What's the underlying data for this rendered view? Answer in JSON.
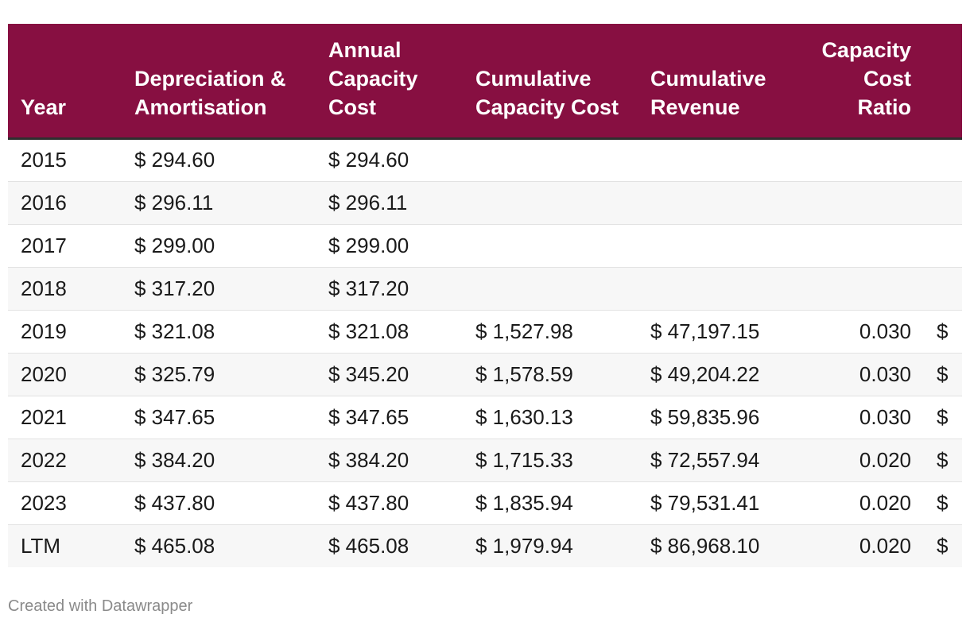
{
  "chart_data": {
    "type": "table",
    "columns": [
      {
        "key": "year",
        "label": "Year",
        "align": "left"
      },
      {
        "key": "dep",
        "label": "Depreciation & Amortisation",
        "align": "left"
      },
      {
        "key": "annual",
        "label": "Annual Capacity Cost",
        "align": "left"
      },
      {
        "key": "cumcost",
        "label": "Cumulative Capacity Cost",
        "align": "left"
      },
      {
        "key": "cumrev",
        "label": "Cumulative Revenue",
        "align": "left"
      },
      {
        "key": "ratio",
        "label": "Capacity Cost Ratio",
        "align": "right"
      },
      {
        "key": "extra",
        "label": "",
        "align": "left"
      }
    ],
    "rows": [
      {
        "year": "2015",
        "dep": "$ 294.60",
        "annual": "$ 294.60",
        "cumcost": "",
        "cumrev": "",
        "ratio": "",
        "extra": ""
      },
      {
        "year": "2016",
        "dep": "$ 296.11",
        "annual": "$ 296.11",
        "cumcost": "",
        "cumrev": "",
        "ratio": "",
        "extra": ""
      },
      {
        "year": "2017",
        "dep": "$ 299.00",
        "annual": "$ 299.00",
        "cumcost": "",
        "cumrev": "",
        "ratio": "",
        "extra": ""
      },
      {
        "year": "2018",
        "dep": "$ 317.20",
        "annual": "$ 317.20",
        "cumcost": "",
        "cumrev": "",
        "ratio": "",
        "extra": ""
      },
      {
        "year": "2019",
        "dep": "$ 321.08",
        "annual": "$ 321.08",
        "cumcost": "$ 1,527.98",
        "cumrev": "$ 47,197.15",
        "ratio": "0.030",
        "extra": "$"
      },
      {
        "year": "2020",
        "dep": "$ 325.79",
        "annual": "$ 345.20",
        "cumcost": "$ 1,578.59",
        "cumrev": "$ 49,204.22",
        "ratio": "0.030",
        "extra": "$"
      },
      {
        "year": "2021",
        "dep": "$ 347.65",
        "annual": "$ 347.65",
        "cumcost": "$ 1,630.13",
        "cumrev": "$ 59,835.96",
        "ratio": "0.030",
        "extra": "$"
      },
      {
        "year": "2022",
        "dep": "$ 384.20",
        "annual": "$ 384.20",
        "cumcost": "$ 1,715.33",
        "cumrev": "$ 72,557.94",
        "ratio": "0.020",
        "extra": "$"
      },
      {
        "year": "2023",
        "dep": "$ 437.80",
        "annual": "$ 437.80",
        "cumcost": "$ 1,835.94",
        "cumrev": "$ 79,531.41",
        "ratio": "0.020",
        "extra": "$"
      },
      {
        "year": "LTM",
        "dep": "$ 465.08",
        "annual": "$ 465.08",
        "cumcost": "$ 1,979.94",
        "cumrev": "$ 86,968.10",
        "ratio": "0.020",
        "extra": "$"
      }
    ],
    "header_color": "#870f41"
  },
  "footer": {
    "credit": "Created with Datawrapper"
  }
}
